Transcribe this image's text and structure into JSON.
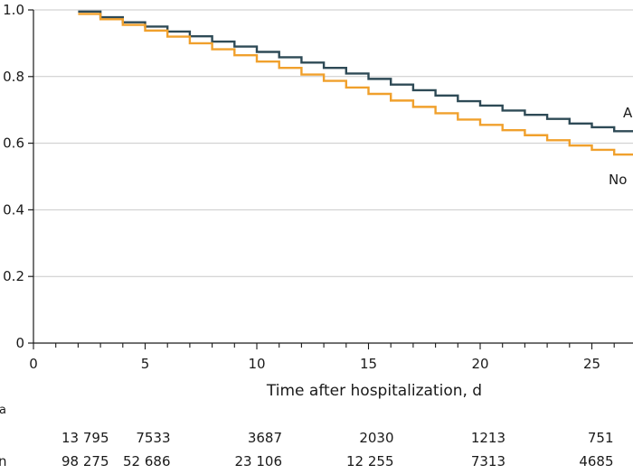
{
  "chart_data": {
    "type": "line",
    "title": "",
    "xlabel": "Time after hospitalization, d",
    "ylabel": "",
    "xlim": [
      0,
      27
    ],
    "ylim": [
      0,
      1.0
    ],
    "x_ticks": [
      0,
      5,
      10,
      15,
      20,
      25
    ],
    "y_ticks": [
      0,
      0.2,
      0.4,
      0.6,
      0.8,
      1.0
    ],
    "x_tick_labels": [
      "0",
      "5",
      "10",
      "15",
      "20",
      "25"
    ],
    "y_tick_labels": [
      "0",
      "0.2",
      "0.4",
      "0.6",
      "0.8",
      "1.0"
    ],
    "series": [
      {
        "name": "A",
        "label": "A",
        "color": "#2e4a56",
        "x": [
          2,
          3,
          4,
          5,
          6,
          7,
          8,
          9,
          10,
          11,
          12,
          13,
          14,
          15,
          16,
          17,
          18,
          19,
          20,
          21,
          22,
          23,
          24,
          25,
          26,
          27
        ],
        "values": [
          0.995,
          0.978,
          0.963,
          0.95,
          0.935,
          0.921,
          0.905,
          0.89,
          0.874,
          0.858,
          0.842,
          0.826,
          0.809,
          0.793,
          0.776,
          0.759,
          0.743,
          0.726,
          0.713,
          0.698,
          0.685,
          0.673,
          0.659,
          0.648,
          0.636,
          0.636
        ]
      },
      {
        "name": "No",
        "label": "No",
        "color": "#f0a02c",
        "x": [
          2,
          3,
          4,
          5,
          6,
          7,
          8,
          9,
          10,
          11,
          12,
          13,
          14,
          15,
          16,
          17,
          18,
          19,
          20,
          21,
          22,
          23,
          24,
          25,
          26,
          27
        ],
        "values": [
          0.988,
          0.972,
          0.955,
          0.938,
          0.92,
          0.9,
          0.882,
          0.864,
          0.845,
          0.826,
          0.806,
          0.787,
          0.767,
          0.748,
          0.728,
          0.709,
          0.69,
          0.671,
          0.655,
          0.639,
          0.624,
          0.609,
          0.593,
          0.58,
          0.566,
          0.566
        ]
      }
    ],
    "risk_table": {
      "header": "a",
      "rows": [
        {
          "label": "",
          "values": [
            "13 795",
            "7533",
            "3687",
            "2030",
            "1213",
            "751"
          ]
        },
        {
          "label": "n",
          "values": [
            "98 275",
            "52 686",
            "23 106",
            "12 255",
            "7313",
            "4685"
          ]
        }
      ]
    }
  }
}
